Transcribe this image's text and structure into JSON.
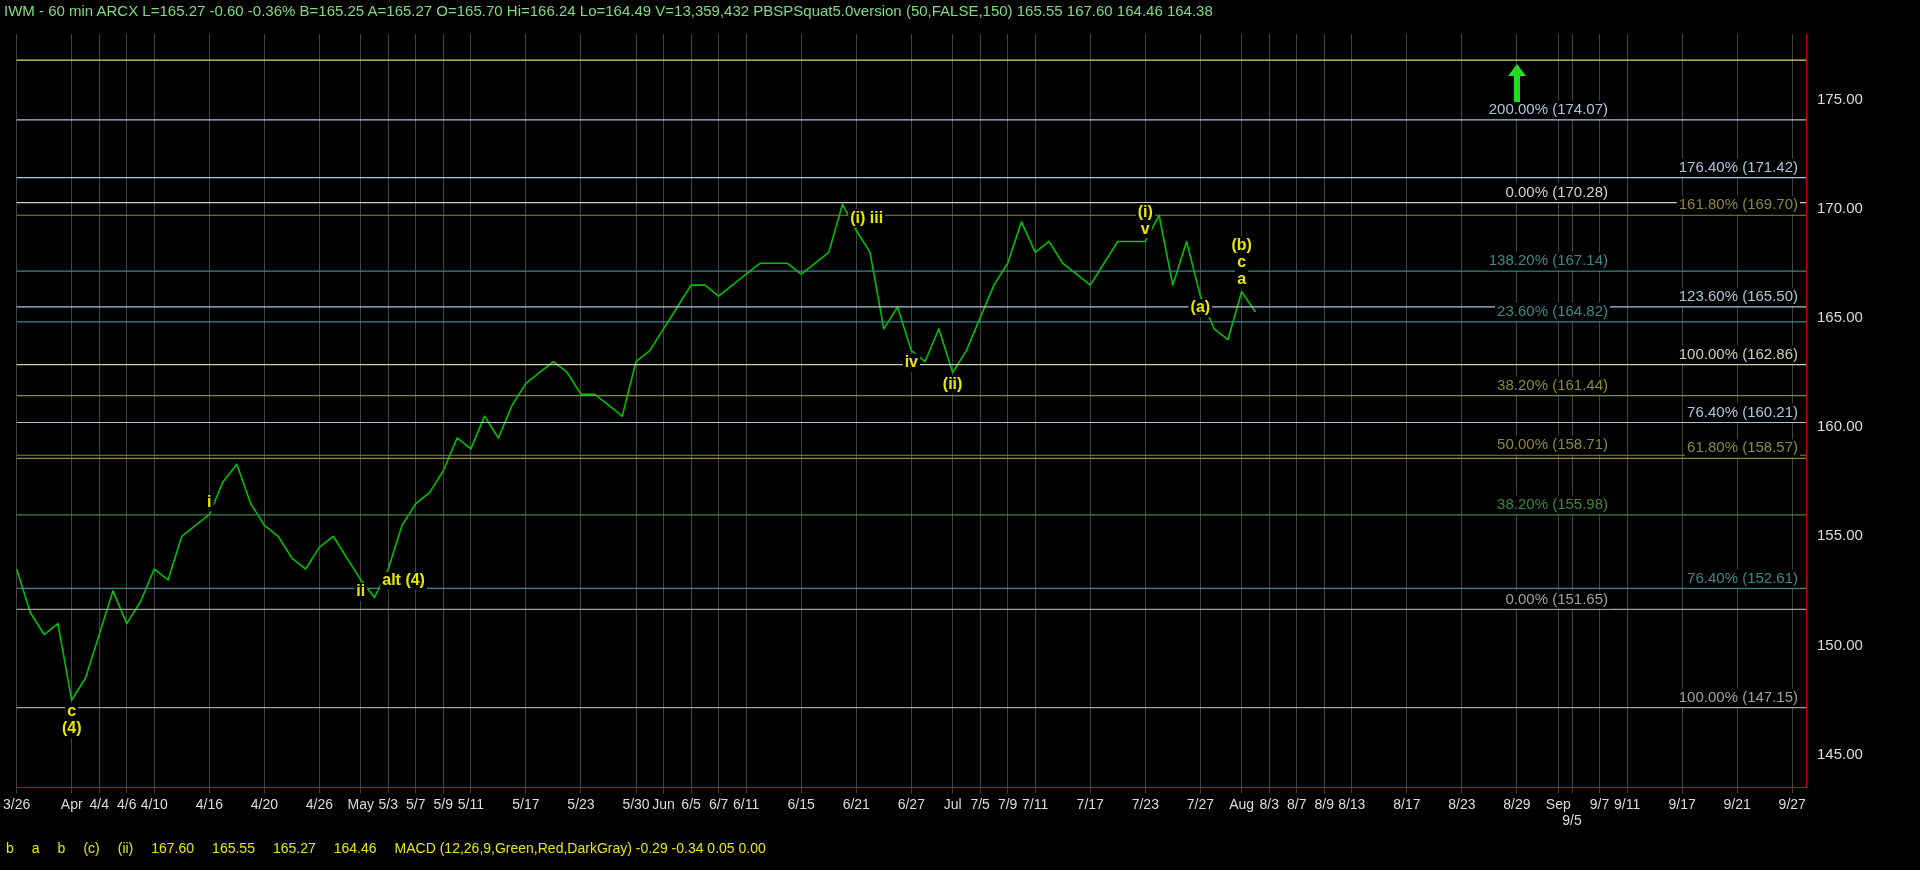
{
  "chart_data": {
    "type": "line",
    "title": "IWM - 60 min ARCX L=165.27 -0.60 -0.36% B=165.25 A=165.27 O=165.70 Hi=166.24 Lo=164.49 V=13,359,432 PBSPSquat5.0version (50,FALSE,150) 165.55 167.60 164.46 164.38",
    "categories": [
      "3/26",
      null,
      null,
      null,
      "Apr",
      null,
      "4/4",
      null,
      "4/6",
      null,
      "4/10",
      null,
      null,
      null,
      "4/16",
      null,
      null,
      null,
      "4/20",
      null,
      null,
      null,
      "4/26",
      null,
      null,
      "May",
      null,
      "5/3",
      null,
      "5/7",
      null,
      "5/9",
      null,
      "5/11",
      null,
      null,
      null,
      "5/17",
      null,
      null,
      null,
      "5/23",
      null,
      null,
      null,
      "5/30",
      null,
      "Jun",
      null,
      "6/5",
      null,
      "6/7",
      null,
      "6/11",
      null,
      null,
      null,
      "6/15",
      null,
      null,
      null,
      "6/21",
      null,
      null,
      null,
      "6/27",
      null,
      null,
      "Jul",
      null,
      "7/5",
      null,
      "7/9",
      null,
      "7/11",
      null,
      null,
      null,
      "7/17",
      null,
      null,
      null,
      "7/23",
      null,
      null,
      null,
      "7/27",
      null,
      null,
      "Aug",
      null,
      "8/3",
      null,
      "8/7",
      null,
      "8/9",
      null,
      "8/13",
      null,
      null,
      null,
      "8/17",
      null,
      null,
      null,
      "8/23",
      null,
      null,
      null,
      "8/29",
      null,
      null,
      "Sep",
      "9/5",
      null,
      "9/7",
      null,
      "9/11",
      null,
      null,
      null,
      "9/17",
      null,
      null,
      null,
      "9/21",
      null,
      null,
      null,
      "9/27",
      null
    ],
    "series": [
      {
        "color": "#00c000",
        "values": [
          153.5,
          151.5,
          150.5,
          151,
          147.5,
          148.5,
          150.5,
          152.5,
          151,
          152,
          153.5,
          153,
          155,
          155.5,
          156,
          157.5,
          158.3,
          156.5,
          155.5,
          155,
          154,
          153.5,
          154.5,
          155,
          154,
          153,
          152.2,
          153.5,
          155.5,
          156.5,
          157,
          158,
          159.5,
          159,
          160.5,
          159.5,
          161,
          162,
          162.5,
          163,
          162.5,
          161.5,
          161.5,
          161,
          160.5,
          163,
          163.5,
          164.5,
          165.5,
          166.5,
          166.5,
          166,
          166.5,
          167,
          167.5,
          167.5,
          167.5,
          167,
          167.5,
          168,
          170.2,
          169,
          168,
          164.5,
          165.5,
          163.5,
          163,
          164.5,
          162.5,
          163.5,
          165,
          166.5,
          167.5,
          169.4,
          168,
          168.5,
          167.5,
          167,
          166.5,
          167.5,
          168.5,
          168.5,
          168.5,
          169.7,
          166.5,
          168.5,
          166,
          164.5,
          164,
          166.2,
          165.27,
          null,
          null,
          null,
          null,
          null,
          null,
          null,
          null,
          null,
          null,
          null,
          null,
          null,
          null,
          null,
          null,
          null,
          null,
          null,
          null,
          null,
          null,
          null,
          null,
          null,
          null,
          null,
          null,
          null,
          null,
          null,
          null,
          null,
          null,
          null,
          null,
          null,
          null,
          null,
          null
        ]
      }
    ],
    "ylim": [
      143.5,
      178
    ],
    "yticks": [
      {
        "value": 145,
        "label": "145.00"
      },
      {
        "value": 150,
        "label": "150.00"
      },
      {
        "value": 155,
        "label": "155.00"
      },
      {
        "value": 160,
        "label": "160.00"
      },
      {
        "value": 165,
        "label": "165.00"
      },
      {
        "value": 170,
        "label": "170.00"
      },
      {
        "value": 175,
        "label": "175.00"
      }
    ],
    "grid": "x",
    "legend": false,
    "marker": "none",
    "line_style": "solid",
    "ref_lines": [
      {
        "axis": "y",
        "value": 176.8,
        "label": null,
        "color": "#e0e070"
      },
      {
        "axis": "y",
        "value": 174.07,
        "label": "200.00% (174.07)",
        "color": "#b0c4de"
      },
      {
        "axis": "y",
        "value": 171.42,
        "label": "176.40% (171.42)",
        "color": "#b0c4de"
      },
      {
        "axis": "y",
        "value": 170.28,
        "label": "0.00% (170.28)",
        "color": "#d0d0d0"
      },
      {
        "axis": "y",
        "value": 169.7,
        "label": "161.80% (169.70)",
        "color": "#8a8a3a"
      },
      {
        "axis": "y",
        "value": 167.14,
        "label": "138.20% (167.14)",
        "color": "#3a8a8a"
      },
      {
        "axis": "y",
        "value": 165.5,
        "label": "123.60% (165.50)",
        "color": "#b0c4de"
      },
      {
        "axis": "y",
        "value": 164.82,
        "label": "23.60% (164.82)",
        "color": "#3a8a8a"
      },
      {
        "axis": "y",
        "value": 162.86,
        "label": "100.00% (162.86)",
        "color": "#d0d0b0"
      },
      {
        "axis": "y",
        "value": 161.44,
        "label": "38.20% (161.44)",
        "color": "#8a8a3a"
      },
      {
        "axis": "y",
        "value": 160.21,
        "label": "76.40% (160.21)",
        "color": "#b0c4de"
      },
      {
        "axis": "y",
        "value": 158.71,
        "label": "50.00% (158.71)",
        "color": "#8a8a3a"
      },
      {
        "axis": "y",
        "value": 158.57,
        "label": "61.80% (158.57)",
        "color": "#8a8a3a"
      },
      {
        "axis": "y",
        "value": 155.98,
        "label": "38.20% (155.98)",
        "color": "#3a8a3a"
      },
      {
        "axis": "y",
        "value": 152.61,
        "label": "76.40% (152.61)",
        "color": "#3a8a8a"
      },
      {
        "axis": "y",
        "value": 151.65,
        "label": "0.00% (151.65)",
        "color": "#a0a0a0"
      },
      {
        "axis": "y",
        "value": 147.15,
        "label": "100.00% (147.15)",
        "color": "#a0a0a0"
      }
    ],
    "annotations": [
      {
        "text": "i",
        "x": "4/16"
      },
      {
        "text": "ii",
        "x": "May"
      },
      {
        "text": "alt (4)",
        "x": "5/3"
      },
      {
        "text": "(i) iii",
        "x": "6/21"
      },
      {
        "text": "iv",
        "x": "6/27"
      },
      {
        "text": "(ii)",
        "x": "Jul"
      },
      {
        "text": "v",
        "x": "7/23"
      },
      {
        "text": "(i)",
        "x": "7/23"
      },
      {
        "text": "(a)",
        "x": "7/27"
      },
      {
        "text": "a",
        "x": "Aug"
      },
      {
        "text": "c",
        "x": "Aug"
      },
      {
        "text": "(b)",
        "x": "Aug"
      },
      {
        "text": "c",
        "x": "Apr"
      },
      {
        "text": "(4)",
        "x": "Apr"
      },
      "b",
      "a",
      "b",
      "(c)",
      "(ii)",
      "167.60",
      "165.55",
      "165.27",
      "164.46",
      "MACD (12,26,9,Green,Red,DarkGray) -0.29 -0.34 0.05 0.00"
    ]
  }
}
